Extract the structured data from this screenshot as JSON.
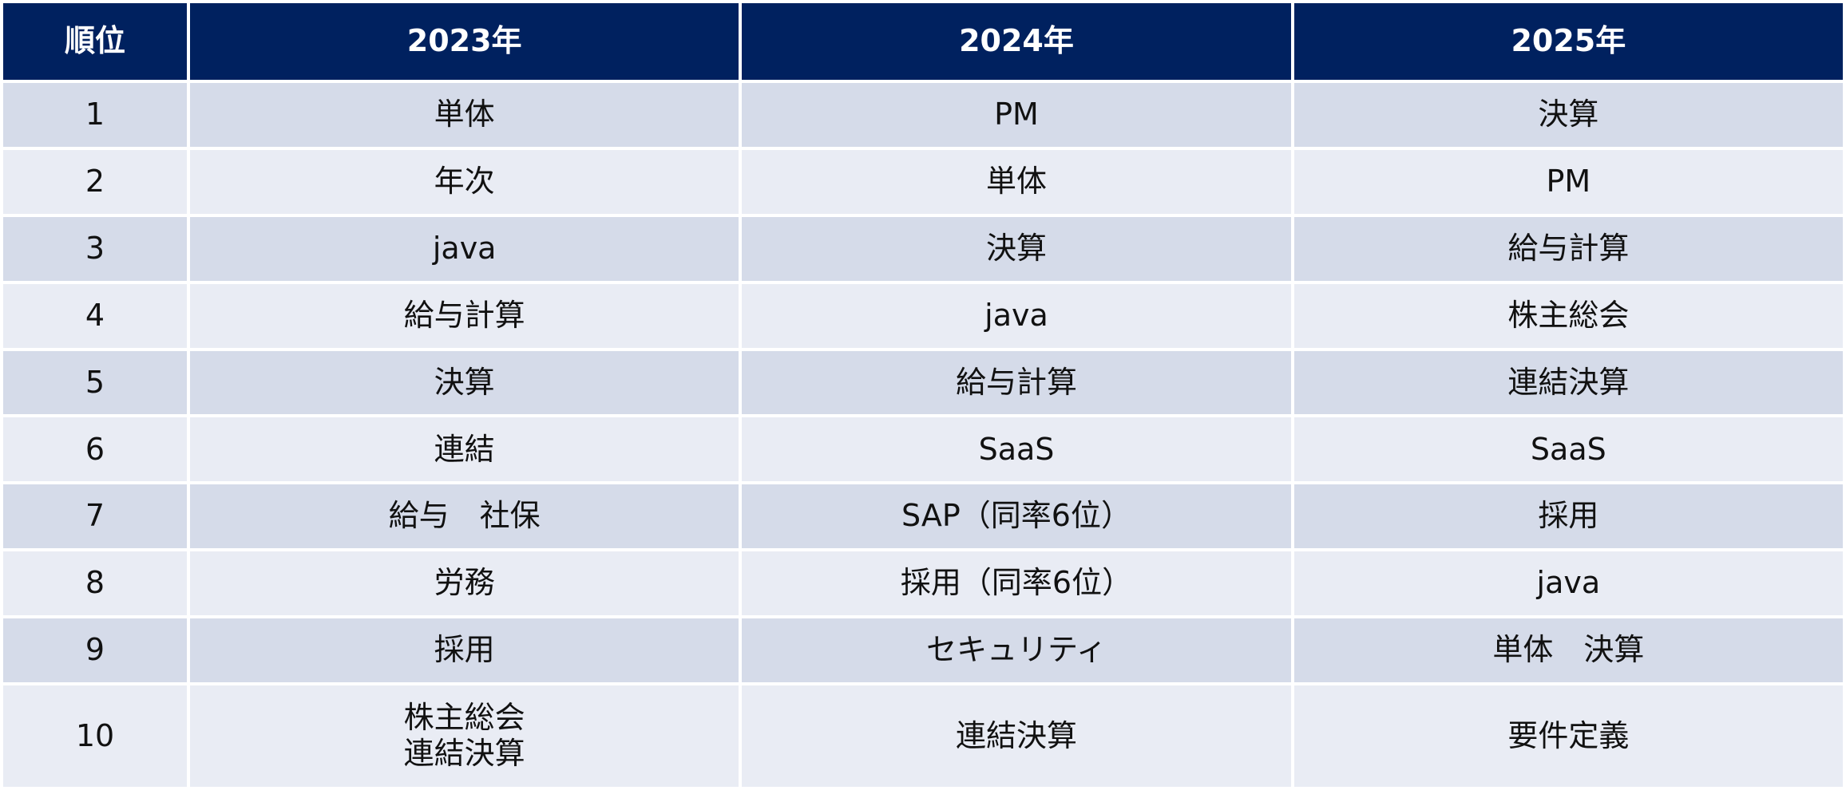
{
  "table": {
    "header": [
      "順位",
      "2023年",
      "2024年",
      "2025年"
    ],
    "rows": [
      [
        1,
        "単体",
        "PM",
        "決算"
      ],
      [
        2,
        "年次",
        "単体",
        "PM"
      ],
      [
        3,
        "java",
        "決算",
        "給与計算"
      ],
      [
        4,
        "給与計算",
        "java",
        "株主総会"
      ],
      [
        5,
        "決算",
        "給与計算",
        "連結決算"
      ],
      [
        6,
        "連結",
        "SaaS",
        "SaaS"
      ],
      [
        7,
        "給与　社保",
        "SAP（同率6位）",
        "採用"
      ],
      [
        8,
        "労務",
        "採用（同率6位）",
        "java"
      ],
      [
        9,
        "採用",
        "セキュリティ",
        "単体　決算"
      ],
      [
        10,
        "株主総会\n連結決算",
        "連結決算",
        "要件定義"
      ]
    ]
  }
}
